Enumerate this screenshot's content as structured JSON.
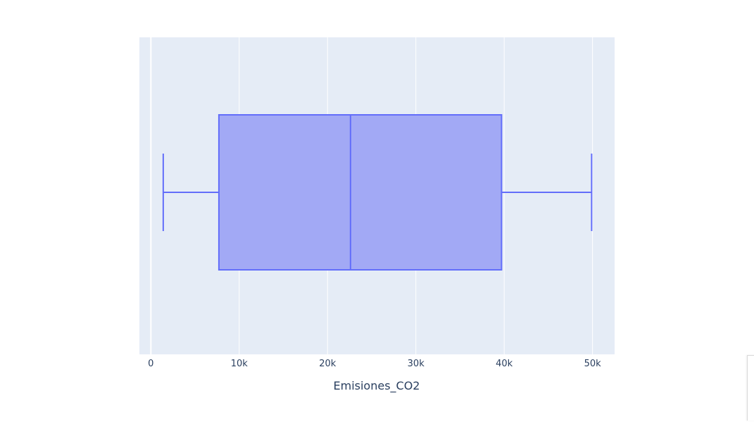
{
  "chart_data": {
    "type": "box",
    "orientation": "horizontal",
    "xlabel": "Emisiones_CO2",
    "xlim": [
      -1300,
      52500
    ],
    "xticks": [
      0,
      10000,
      20000,
      30000,
      40000,
      50000
    ],
    "xtick_labels": [
      "0",
      "10k",
      "20k",
      "30k",
      "40k",
      "50k"
    ],
    "grid": true,
    "series": [
      {
        "min": 1400,
        "q1": 7700,
        "median": 22600,
        "q3": 39700,
        "max": 49900
      }
    ],
    "colors": {
      "plot_background": "#e5ecf6",
      "gridline": "#ffffff",
      "box_line": "#636efa",
      "box_fill": "#a2a9f5",
      "tick_text": "#2a3f5f"
    }
  }
}
